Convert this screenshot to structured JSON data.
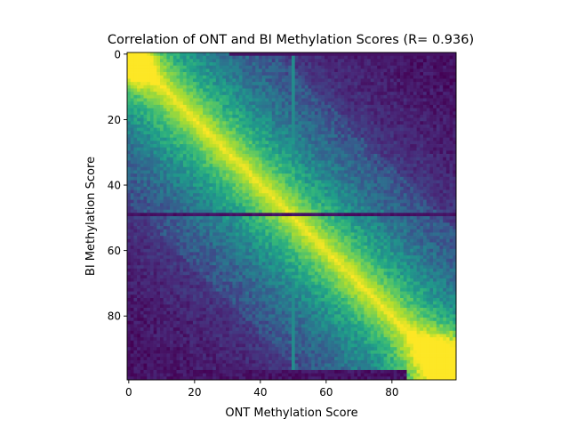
{
  "chart_data": {
    "type": "heatmap",
    "title": "Correlation of ONT and BI Methylation Scores (R= 0.936)",
    "xlabel": "ONT Methylation Score",
    "ylabel": "BI Methylation Score",
    "x_range": [
      0,
      99
    ],
    "y_range": [
      0,
      99
    ],
    "y_axis_inverted": true,
    "x_ticks": [
      "0",
      "20",
      "40",
      "60",
      "80"
    ],
    "y_ticks": [
      "0",
      "20",
      "40",
      "60",
      "80"
    ],
    "x_tick_values": [
      0,
      20,
      40,
      60,
      80
    ],
    "y_tick_values": [
      0,
      20,
      40,
      60,
      80
    ],
    "colormap": "viridis",
    "grid": false,
    "correlation_R": 0.936,
    "highlight_column": 50,
    "highlight_row": 49,
    "density_peaks": [
      {
        "x": 0,
        "y": 2,
        "level": "high"
      },
      {
        "x": 99,
        "y": 96,
        "level": "high"
      }
    ],
    "colors": {
      "low": "#440154",
      "mid": "#21918c",
      "high": "#fde725"
    }
  }
}
